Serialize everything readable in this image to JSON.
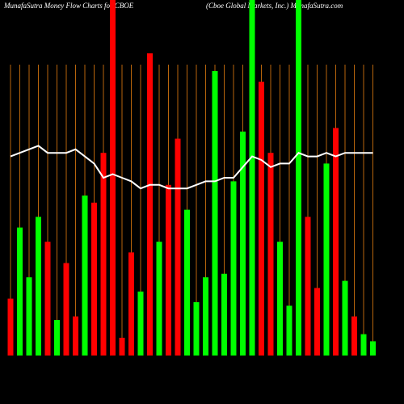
{
  "chart_data": {
    "type": "bar",
    "title": "MunafaSutra  Money  Flow  Charts for CBOE",
    "subtitle": "(Cboe   Global  Markets,  Inc.)  MunafaSutra.com",
    "categories": [
      null,
      null,
      null,
      null,
      null,
      null,
      null,
      null,
      null,
      null,
      null,
      null,
      null,
      null,
      null,
      null,
      null,
      null,
      null,
      null,
      null,
      null,
      null,
      null,
      null,
      null,
      null,
      null,
      null,
      null,
      null,
      null,
      null,
      null,
      null,
      null,
      null,
      null,
      null,
      null
    ],
    "values": [
      16,
      36,
      22,
      39,
      32,
      10,
      26,
      11,
      45,
      43,
      57,
      100,
      5,
      29,
      18,
      85,
      32,
      48,
      61,
      41,
      15,
      22,
      80,
      23,
      49,
      63,
      100,
      77,
      57,
      32,
      14,
      100,
      39,
      19,
      54,
      64,
      21,
      11,
      6,
      4
    ],
    "colors": [
      "#ff0000",
      "#00ff00",
      "#00ff00",
      "#00ff00",
      "#ff0000",
      "#00ff00",
      "#ff0000",
      "#ff0000",
      "#00ff00",
      "#ff0000",
      "#ff0000",
      "#ff0000",
      "#ff0000",
      "#ff0000",
      "#00ff00",
      "#ff0000",
      "#00ff00",
      "#ff0000",
      "#ff0000",
      "#00ff00",
      "#00ff00",
      "#00ff00",
      "#00ff00",
      "#00ff00",
      "#00ff00",
      "#00ff00",
      "#00ff00",
      "#ff0000",
      "#ff0000",
      "#00ff00",
      "#00ff00",
      "#00ff00",
      "#ff0000",
      "#ff0000",
      "#00ff00",
      "#ff0000",
      "#00ff00",
      "#ff0000",
      "#00ff00",
      "#00ff00"
    ],
    "line": {
      "color": "#ffffff",
      "values": [
        56,
        57,
        58,
        59,
        57,
        57,
        57,
        58,
        56,
        54,
        50,
        51,
        50,
        49,
        47,
        48,
        48,
        47,
        47,
        47,
        48,
        49,
        49,
        50,
        50,
        53,
        56,
        55,
        53,
        54,
        54,
        57,
        56,
        56,
        57,
        56,
        57,
        57,
        57,
        57
      ]
    },
    "ylim": [
      0,
      100
    ],
    "grid_color": "#b8650c"
  }
}
